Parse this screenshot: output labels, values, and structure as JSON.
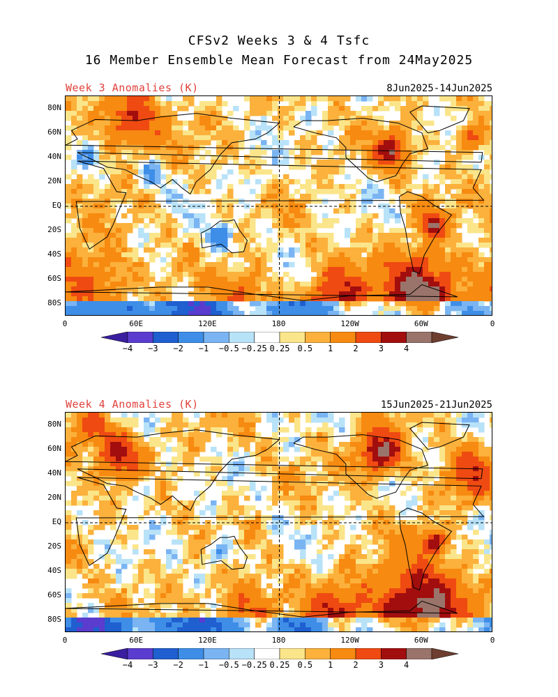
{
  "title_line1": "CFSv2 Weeks 3 & 4 Tsfc",
  "title_line2": "16 Member Ensemble Mean Forecast from 24May2025",
  "panels": [
    {
      "label": "Week 3 Anomalies (K)",
      "dates": "8Jun2025-14Jun2025"
    },
    {
      "label": "Week 4 Anomalies (K)",
      "dates": "15Jun2025-21Jun2025"
    }
  ],
  "lat_labels": [
    "80N",
    "60N",
    "40N",
    "20N",
    "EQ",
    "20S",
    "40S",
    "60S",
    "80S"
  ],
  "lon_labels": [
    "0",
    "60E",
    "120E",
    "180",
    "120W",
    "60W",
    "0"
  ],
  "colorbar": {
    "labels": [
      "-4",
      "-3",
      "-2",
      "-1",
      "-0.5",
      "-0.25",
      "0.25",
      "0.5",
      "1",
      "2",
      "3",
      "4"
    ],
    "colors": [
      "#3a1ea0",
      "#5a3ccf",
      "#1f5fd0",
      "#3e8ee8",
      "#7ab4f2",
      "#b8e2f8",
      "#ffffff",
      "#fbe58a",
      "#fbb13c",
      "#f78a10",
      "#ef4a12",
      "#a20e0e",
      "#9a746a",
      "#6e3f30"
    ]
  },
  "chart_data": {
    "type": "heatmap",
    "variable": "Tsfc anomaly",
    "unit": "K",
    "legend_levels": [
      -4,
      -3,
      -2,
      -1,
      -0.5,
      -0.25,
      0.25,
      0.5,
      1,
      2,
      3,
      4
    ]
  }
}
